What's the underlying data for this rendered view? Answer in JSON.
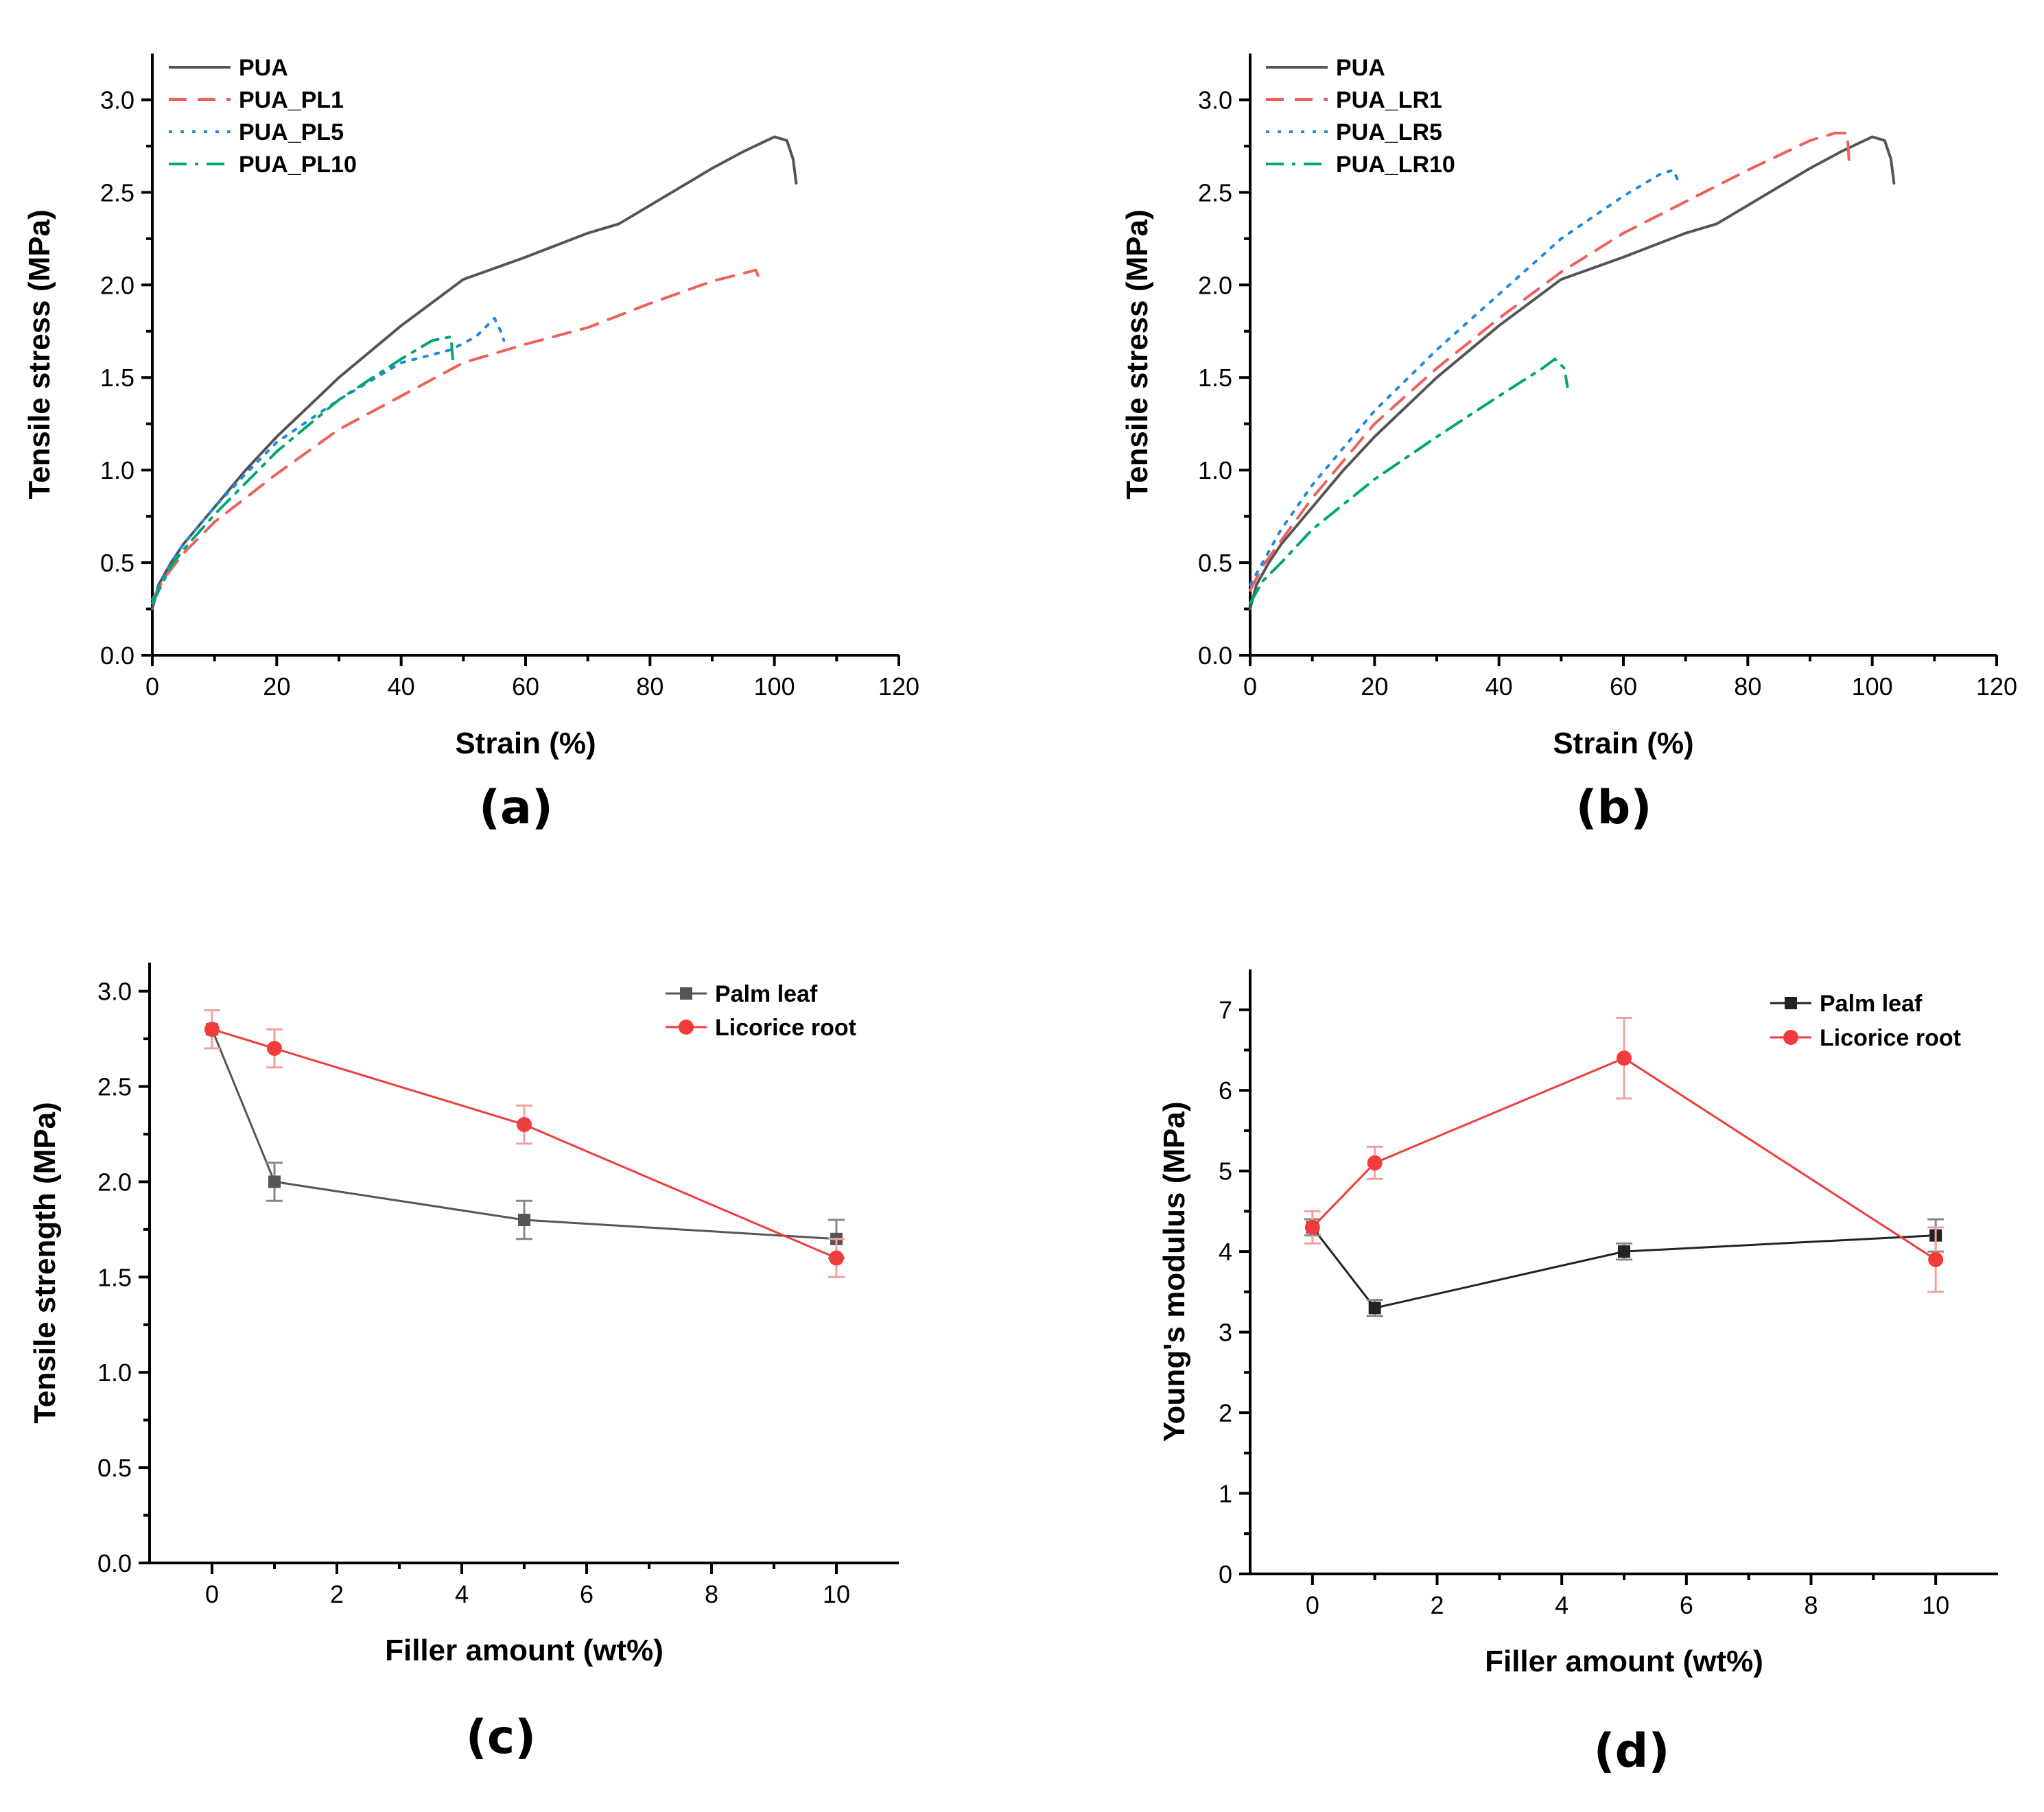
{
  "chart_data": [
    {
      "id": "a",
      "panel_label": "(a)",
      "type": "line",
      "xlabel": "Strain (%)",
      "ylabel": "Tensile stress (MPa)",
      "xlim": [
        0,
        120
      ],
      "ylim": [
        0,
        3.25
      ],
      "xticks": [
        0,
        20,
        40,
        60,
        80,
        100,
        120
      ],
      "xtick_labels": [
        "0",
        "20",
        "40",
        "60",
        "80",
        "100",
        "120"
      ],
      "yticks": [
        0,
        0.5,
        1,
        1.5,
        2,
        2.5,
        3
      ],
      "ytick_labels": [
        "0.0",
        "0.5",
        "1.0",
        "1.5",
        "2.0",
        "2.5",
        "3.0"
      ],
      "legend_position": "top-left",
      "series": [
        {
          "name": "PUA",
          "color": "#555555",
          "dash": "solid",
          "points": [
            [
              0,
              0.25
            ],
            [
              1,
              0.38
            ],
            [
              3,
              0.5
            ],
            [
              5,
              0.6
            ],
            [
              10,
              0.8
            ],
            [
              15,
              1.0
            ],
            [
              20,
              1.18
            ],
            [
              30,
              1.5
            ],
            [
              40,
              1.78
            ],
            [
              50,
              2.03
            ],
            [
              60,
              2.15
            ],
            [
              70,
              2.28
            ],
            [
              75,
              2.33
            ],
            [
              80,
              2.43
            ],
            [
              90,
              2.63
            ],
            [
              95,
              2.72
            ],
            [
              100,
              2.8
            ],
            [
              102,
              2.78
            ],
            [
              103,
              2.68
            ],
            [
              103.5,
              2.55
            ]
          ]
        },
        {
          "name": "PUA_PL1",
          "color": "#f0605a",
          "dash": "dashed",
          "points": [
            [
              0,
              0.3
            ],
            [
              2,
              0.42
            ],
            [
              5,
              0.55
            ],
            [
              10,
              0.72
            ],
            [
              20,
              0.98
            ],
            [
              30,
              1.22
            ],
            [
              40,
              1.4
            ],
            [
              50,
              1.58
            ],
            [
              60,
              1.68
            ],
            [
              70,
              1.77
            ],
            [
              80,
              1.9
            ],
            [
              90,
              2.02
            ],
            [
              97,
              2.08
            ],
            [
              98,
              2.0
            ]
          ]
        },
        {
          "name": "PUA_PL5",
          "color": "#1e88e5",
          "dash": "dotted",
          "points": [
            [
              0,
              0.3
            ],
            [
              3,
              0.5
            ],
            [
              5,
              0.6
            ],
            [
              10,
              0.8
            ],
            [
              15,
              0.98
            ],
            [
              20,
              1.15
            ],
            [
              30,
              1.38
            ],
            [
              40,
              1.58
            ],
            [
              48,
              1.65
            ],
            [
              52,
              1.72
            ],
            [
              55,
              1.82
            ],
            [
              56,
              1.75
            ],
            [
              56.5,
              1.7
            ]
          ]
        },
        {
          "name": "PUA_PL10",
          "color": "#00a86b",
          "dash": "dashdot",
          "points": [
            [
              0,
              0.28
            ],
            [
              3,
              0.48
            ],
            [
              5,
              0.57
            ],
            [
              10,
              0.76
            ],
            [
              20,
              1.1
            ],
            [
              30,
              1.38
            ],
            [
              40,
              1.6
            ],
            [
              45,
              1.7
            ],
            [
              48,
              1.72
            ],
            [
              48.3,
              1.6
            ]
          ]
        }
      ]
    },
    {
      "id": "b",
      "panel_label": "(b)",
      "type": "line",
      "xlabel": "Strain (%)",
      "ylabel": "Tensile stress (MPa)",
      "xlim": [
        0,
        120
      ],
      "ylim": [
        0,
        3.25
      ],
      "xticks": [
        0,
        20,
        40,
        60,
        80,
        100,
        120
      ],
      "xtick_labels": [
        "0",
        "20",
        "40",
        "60",
        "80",
        "100",
        "120"
      ],
      "yticks": [
        0,
        0.5,
        1,
        1.5,
        2,
        2.5,
        3
      ],
      "ytick_labels": [
        "0.0",
        "0.5",
        "1.0",
        "1.5",
        "2.0",
        "2.5",
        "3.0"
      ],
      "legend_position": "top-left",
      "series": [
        {
          "name": "PUA",
          "color": "#555555",
          "dash": "solid",
          "points": [
            [
              0,
              0.25
            ],
            [
              1,
              0.38
            ],
            [
              3,
              0.5
            ],
            [
              5,
              0.6
            ],
            [
              10,
              0.8
            ],
            [
              15,
              1.0
            ],
            [
              20,
              1.18
            ],
            [
              30,
              1.5
            ],
            [
              40,
              1.78
            ],
            [
              50,
              2.03
            ],
            [
              60,
              2.15
            ],
            [
              70,
              2.28
            ],
            [
              75,
              2.33
            ],
            [
              80,
              2.43
            ],
            [
              90,
              2.63
            ],
            [
              95,
              2.72
            ],
            [
              100,
              2.8
            ],
            [
              102,
              2.78
            ],
            [
              103,
              2.68
            ],
            [
              103.5,
              2.55
            ]
          ]
        },
        {
          "name": "PUA_LR1",
          "color": "#f0605a",
          "dash": "dashed",
          "points": [
            [
              0,
              0.35
            ],
            [
              2,
              0.48
            ],
            [
              5,
              0.62
            ],
            [
              10,
              0.85
            ],
            [
              20,
              1.25
            ],
            [
              30,
              1.55
            ],
            [
              40,
              1.82
            ],
            [
              50,
              2.07
            ],
            [
              60,
              2.28
            ],
            [
              70,
              2.45
            ],
            [
              80,
              2.62
            ],
            [
              90,
              2.78
            ],
            [
              94,
              2.82
            ],
            [
              96,
              2.82
            ],
            [
              96.3,
              2.65
            ]
          ]
        },
        {
          "name": "PUA_LR5",
          "color": "#1e88e5",
          "dash": "dotted",
          "points": [
            [
              0,
              0.38
            ],
            [
              2,
              0.5
            ],
            [
              5,
              0.68
            ],
            [
              10,
              0.92
            ],
            [
              20,
              1.32
            ],
            [
              30,
              1.65
            ],
            [
              40,
              1.95
            ],
            [
              50,
              2.25
            ],
            [
              60,
              2.48
            ],
            [
              66,
              2.6
            ],
            [
              68,
              2.62
            ],
            [
              69,
              2.55
            ]
          ]
        },
        {
          "name": "PUA_LR10",
          "color": "#00a86b",
          "dash": "dashdot",
          "points": [
            [
              0,
              0.28
            ],
            [
              2,
              0.4
            ],
            [
              5,
              0.5
            ],
            [
              10,
              0.68
            ],
            [
              20,
              0.95
            ],
            [
              30,
              1.18
            ],
            [
              40,
              1.4
            ],
            [
              47,
              1.55
            ],
            [
              49,
              1.6
            ],
            [
              50.5,
              1.55
            ],
            [
              51,
              1.45
            ]
          ]
        }
      ]
    },
    {
      "id": "c",
      "panel_label": "(c)",
      "type": "line",
      "xlabel": "Filler amount (wt%)",
      "ylabel": "Tensile strength (MPa)",
      "xlim": [
        -1,
        11
      ],
      "ylim": [
        0,
        3.15
      ],
      "xticks": [
        0,
        2,
        4,
        6,
        8,
        10
      ],
      "xtick_labels": [
        "0",
        "2",
        "4",
        "6",
        "8",
        "10"
      ],
      "yticks": [
        0,
        0.5,
        1,
        1.5,
        2,
        2.5,
        3
      ],
      "ytick_labels": [
        "0.0",
        "0.5",
        "1.0",
        "1.5",
        "2.0",
        "2.5",
        "3.0"
      ],
      "legend_position": "top-right",
      "series": [
        {
          "name": "Palm leaf",
          "color": "#555555",
          "marker": "square",
          "x": [
            0,
            1,
            5,
            10
          ],
          "y": [
            2.8,
            2.0,
            1.8,
            1.7
          ],
          "yerr": [
            0.1,
            0.1,
            0.1,
            0.1
          ]
        },
        {
          "name": "Licorice root",
          "color": "#f03c3c",
          "marker": "circle",
          "x": [
            0,
            1,
            5,
            10
          ],
          "y": [
            2.8,
            2.7,
            2.3,
            1.6
          ],
          "yerr": [
            0.1,
            0.1,
            0.1,
            0.1
          ]
        }
      ]
    },
    {
      "id": "d",
      "panel_label": "(d)",
      "type": "line",
      "xlabel": "Filler amount (wt%)",
      "ylabel": "Young's modulus (MPa)",
      "xlim": [
        -1,
        11
      ],
      "ylim": [
        0,
        7.5
      ],
      "xticks": [
        0,
        2,
        4,
        6,
        8,
        10
      ],
      "xtick_labels": [
        "0",
        "2",
        "4",
        "6",
        "8",
        "10"
      ],
      "yticks": [
        0,
        1,
        2,
        3,
        4,
        5,
        6,
        7
      ],
      "ytick_labels": [
        "0",
        "1",
        "2",
        "3",
        "4",
        "5",
        "6",
        "7"
      ],
      "legend_position": "top-right",
      "series": [
        {
          "name": "Palm leaf",
          "color": "#222222",
          "marker": "square",
          "x": [
            0,
            1,
            5,
            10
          ],
          "y": [
            4.3,
            3.3,
            4.0,
            4.2
          ],
          "yerr": [
            0.1,
            0.1,
            0.1,
            0.2
          ]
        },
        {
          "name": "Licorice root",
          "color": "#f03c3c",
          "marker": "circle",
          "x": [
            0,
            1,
            5,
            10
          ],
          "y": [
            4.3,
            5.1,
            6.4,
            3.9
          ],
          "yerr": [
            0.2,
            0.2,
            0.5,
            0.4
          ]
        }
      ]
    }
  ]
}
